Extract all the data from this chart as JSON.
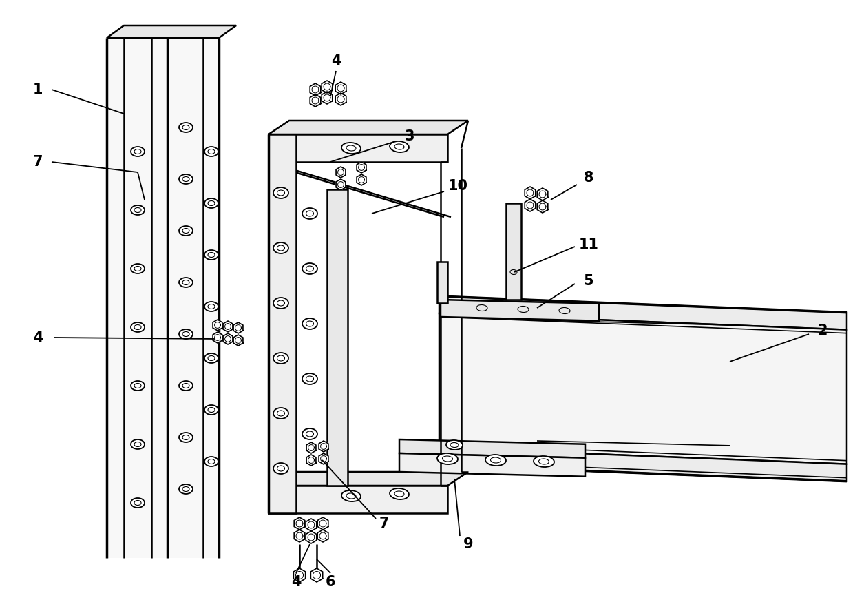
{
  "fig_width": 12.39,
  "fig_height": 8.58,
  "bg_color": "#ffffff",
  "line_color": "#000000",
  "label_fontsize": 15,
  "label_fontweight": "bold",
  "lw_thin": 1.2,
  "lw_med": 1.8,
  "lw_thick": 2.5
}
